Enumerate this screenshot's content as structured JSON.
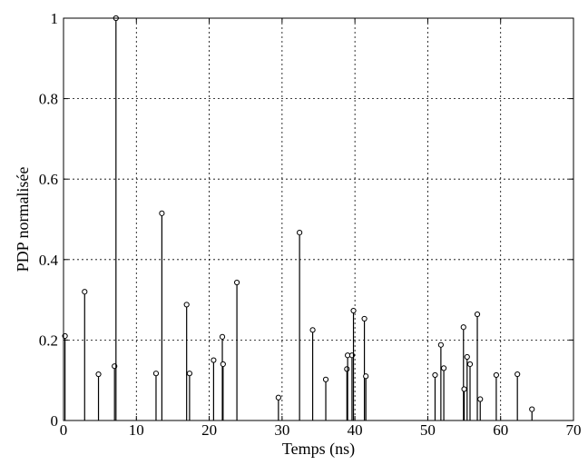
{
  "chart_data": {
    "type": "stem",
    "xlabel": "Temps (ns)",
    "ylabel": "PDP normalisée",
    "xlim": [
      0,
      70
    ],
    "ylim": [
      0,
      1
    ],
    "xticks": [
      0,
      10,
      20,
      30,
      40,
      50,
      60,
      70
    ],
    "yticks": [
      0,
      0.2,
      0.4,
      0.6,
      0.8,
      1
    ],
    "ytick_labels": [
      "0",
      "0.2",
      "0.4",
      "0.6",
      "0.8",
      "1"
    ],
    "grid": true,
    "points": [
      {
        "x": 0.2,
        "y": 0.21
      },
      {
        "x": 2.9,
        "y": 0.32
      },
      {
        "x": 4.8,
        "y": 0.115
      },
      {
        "x": 7.0,
        "y": 0.135
      },
      {
        "x": 7.2,
        "y": 1.0
      },
      {
        "x": 12.7,
        "y": 0.117
      },
      {
        "x": 13.5,
        "y": 0.515
      },
      {
        "x": 16.9,
        "y": 0.288
      },
      {
        "x": 17.3,
        "y": 0.117
      },
      {
        "x": 20.6,
        "y": 0.15
      },
      {
        "x": 21.8,
        "y": 0.208
      },
      {
        "x": 21.9,
        "y": 0.14
      },
      {
        "x": 23.8,
        "y": 0.343
      },
      {
        "x": 29.5,
        "y": 0.057
      },
      {
        "x": 32.4,
        "y": 0.467
      },
      {
        "x": 34.2,
        "y": 0.225
      },
      {
        "x": 36.0,
        "y": 0.102
      },
      {
        "x": 38.9,
        "y": 0.128
      },
      {
        "x": 39.0,
        "y": 0.162
      },
      {
        "x": 39.6,
        "y": 0.162
      },
      {
        "x": 39.8,
        "y": 0.273
      },
      {
        "x": 41.3,
        "y": 0.253
      },
      {
        "x": 41.5,
        "y": 0.11
      },
      {
        "x": 51.0,
        "y": 0.113
      },
      {
        "x": 51.8,
        "y": 0.188
      },
      {
        "x": 52.2,
        "y": 0.13
      },
      {
        "x": 54.9,
        "y": 0.232
      },
      {
        "x": 55.0,
        "y": 0.078
      },
      {
        "x": 55.4,
        "y": 0.158
      },
      {
        "x": 55.8,
        "y": 0.14
      },
      {
        "x": 56.8,
        "y": 0.264
      },
      {
        "x": 57.2,
        "y": 0.053
      },
      {
        "x": 59.4,
        "y": 0.113
      },
      {
        "x": 62.3,
        "y": 0.115
      },
      {
        "x": 64.3,
        "y": 0.028
      }
    ]
  }
}
